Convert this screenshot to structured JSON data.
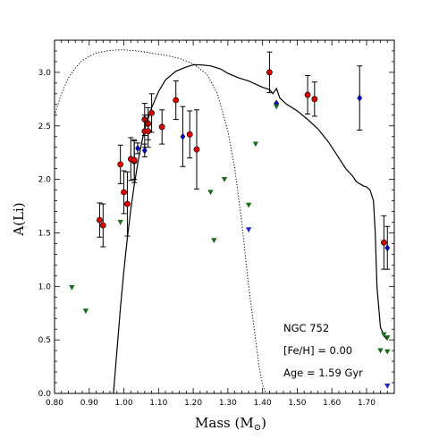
{
  "chart_data": {
    "type": "scatter",
    "xlabel": "Mass (M",
    "xlabel_sub": "⊙",
    "xlabel_close": ")",
    "ylabel": "A(Li)",
    "xlim": [
      0.8,
      1.78
    ],
    "ylim": [
      0.0,
      3.3
    ],
    "xticks": [
      0.8,
      0.9,
      1.0,
      1.1,
      1.2,
      1.3,
      1.4,
      1.5,
      1.6,
      1.7
    ],
    "xtick_labels": [
      "0.80",
      "0.90",
      "1.00",
      "1.10",
      "1.20",
      "1.30",
      "1.40",
      "1.50",
      "1.60",
      "1.70"
    ],
    "yticks": [
      0.0,
      0.5,
      1.0,
      1.5,
      2.0,
      2.5,
      3.0
    ],
    "ytick_labels": [
      "0.0",
      "0.5",
      "1.0",
      "1.5",
      "2.0",
      "2.5",
      "3.0"
    ],
    "grid": false,
    "annotations": [
      "NGC 752",
      "[Fe/H] = 0.00",
      "Age = 1.59 Gyr"
    ],
    "colors": {
      "detection_red": "#e00000",
      "detection_blue": "#0000cc",
      "upper_limit_green": "#1a6b1a",
      "upper_limit_blue": "#2222cc",
      "model_line": "#000000"
    },
    "series": [
      {
        "kind": "detections-red",
        "points": [
          {
            "x": 0.93,
            "y": 1.62,
            "err": 0.16
          },
          {
            "x": 0.94,
            "y": 1.57,
            "err": 0.2
          },
          {
            "x": 0.99,
            "y": 2.14,
            "err": 0.18
          },
          {
            "x": 1.0,
            "y": 1.88,
            "err": 0.2
          },
          {
            "x": 1.01,
            "y": 1.77,
            "err": 0.3
          },
          {
            "x": 1.02,
            "y": 2.19,
            "err": 0.2
          },
          {
            "x": 1.03,
            "y": 2.17,
            "err": 0.2
          },
          {
            "x": 1.03,
            "y": 2.18,
            "err": 0.18
          },
          {
            "x": 1.06,
            "y": 2.56,
            "err": 0.15
          },
          {
            "x": 1.06,
            "y": 2.45,
            "err": 0.15
          },
          {
            "x": 1.07,
            "y": 2.52,
            "err": 0.15
          },
          {
            "x": 1.07,
            "y": 2.45,
            "err": 0.15
          },
          {
            "x": 1.08,
            "y": 2.62,
            "err": 0.18
          },
          {
            "x": 1.11,
            "y": 2.49,
            "err": 0.16
          },
          {
            "x": 1.15,
            "y": 2.74,
            "err": 0.18
          },
          {
            "x": 1.19,
            "y": 2.42,
            "err": 0.22
          },
          {
            "x": 1.21,
            "y": 2.28,
            "err": 0.37
          },
          {
            "x": 1.42,
            "y": 3.0,
            "err": 0.19
          },
          {
            "x": 1.53,
            "y": 2.79,
            "err": 0.18
          },
          {
            "x": 1.55,
            "y": 2.75,
            "err": 0.16
          },
          {
            "x": 1.75,
            "y": 1.41,
            "err": 0.25
          }
        ]
      },
      {
        "kind": "detections-blue",
        "points": [
          {
            "x": 1.04,
            "y": 2.29,
            "err": 0.05
          },
          {
            "x": 1.06,
            "y": 2.27,
            "err": 0.06
          },
          {
            "x": 1.17,
            "y": 2.4,
            "err": 0.28
          },
          {
            "x": 1.44,
            "y": 2.71,
            "err": 0.0
          },
          {
            "x": 1.68,
            "y": 2.76,
            "err": 0.3
          },
          {
            "x": 1.76,
            "y": 1.36,
            "err": 0.2
          }
        ]
      },
      {
        "kind": "upper-limits-green",
        "points": [
          {
            "x": 0.85,
            "y": 0.99
          },
          {
            "x": 0.89,
            "y": 0.77
          },
          {
            "x": 0.99,
            "y": 1.6
          },
          {
            "x": 1.25,
            "y": 1.88
          },
          {
            "x": 1.26,
            "y": 1.43
          },
          {
            "x": 1.29,
            "y": 2.0
          },
          {
            "x": 1.36,
            "y": 1.76
          },
          {
            "x": 1.38,
            "y": 2.33
          },
          {
            "x": 1.44,
            "y": 2.68
          },
          {
            "x": 1.74,
            "y": 0.4
          },
          {
            "x": 1.75,
            "y": 0.55
          },
          {
            "x": 1.76,
            "y": 0.52
          },
          {
            "x": 1.76,
            "y": 0.39
          }
        ]
      },
      {
        "kind": "upper-limits-blue",
        "points": [
          {
            "x": 1.36,
            "y": 1.53
          },
          {
            "x": 1.76,
            "y": 0.07
          }
        ]
      }
    ],
    "model_solid": {
      "x": [
        0.97,
        0.98,
        0.99,
        1.0,
        1.01,
        1.02,
        1.03,
        1.04,
        1.05,
        1.06,
        1.08,
        1.1,
        1.12,
        1.15,
        1.18,
        1.2,
        1.22,
        1.25,
        1.28,
        1.3,
        1.33,
        1.36,
        1.38,
        1.4,
        1.42,
        1.43,
        1.44,
        1.45,
        1.47,
        1.5,
        1.53,
        1.56,
        1.59,
        1.62,
        1.64,
        1.66,
        1.67,
        1.69,
        1.7,
        1.71,
        1.72,
        1.725,
        1.73,
        1.74,
        1.75,
        1.76
      ],
      "y": [
        0.0,
        0.4,
        0.8,
        1.15,
        1.45,
        1.72,
        1.95,
        2.15,
        2.32,
        2.47,
        2.67,
        2.82,
        2.93,
        3.01,
        3.05,
        3.07,
        3.07,
        3.06,
        3.03,
        2.99,
        2.95,
        2.92,
        2.89,
        2.86,
        2.84,
        2.8,
        2.85,
        2.76,
        2.7,
        2.64,
        2.56,
        2.47,
        2.35,
        2.2,
        2.1,
        2.03,
        1.98,
        1.94,
        1.93,
        1.9,
        1.8,
        1.5,
        1.0,
        0.62,
        0.54,
        0.5
      ]
    },
    "model_dotted": {
      "x": [
        0.8,
        0.82,
        0.84,
        0.86,
        0.88,
        0.9,
        0.92,
        0.95,
        0.98,
        1.0,
        1.04,
        1.08,
        1.12,
        1.16,
        1.2,
        1.24,
        1.27,
        1.3,
        1.32,
        1.34,
        1.36,
        1.38,
        1.39,
        1.4,
        1.41
      ],
      "y": [
        2.6,
        2.8,
        2.95,
        3.04,
        3.11,
        3.15,
        3.18,
        3.2,
        3.21,
        3.21,
        3.2,
        3.18,
        3.16,
        3.13,
        3.08,
        2.98,
        2.8,
        2.45,
        2.1,
        1.6,
        1.0,
        0.5,
        0.25,
        0.08,
        0.0
      ]
    }
  }
}
